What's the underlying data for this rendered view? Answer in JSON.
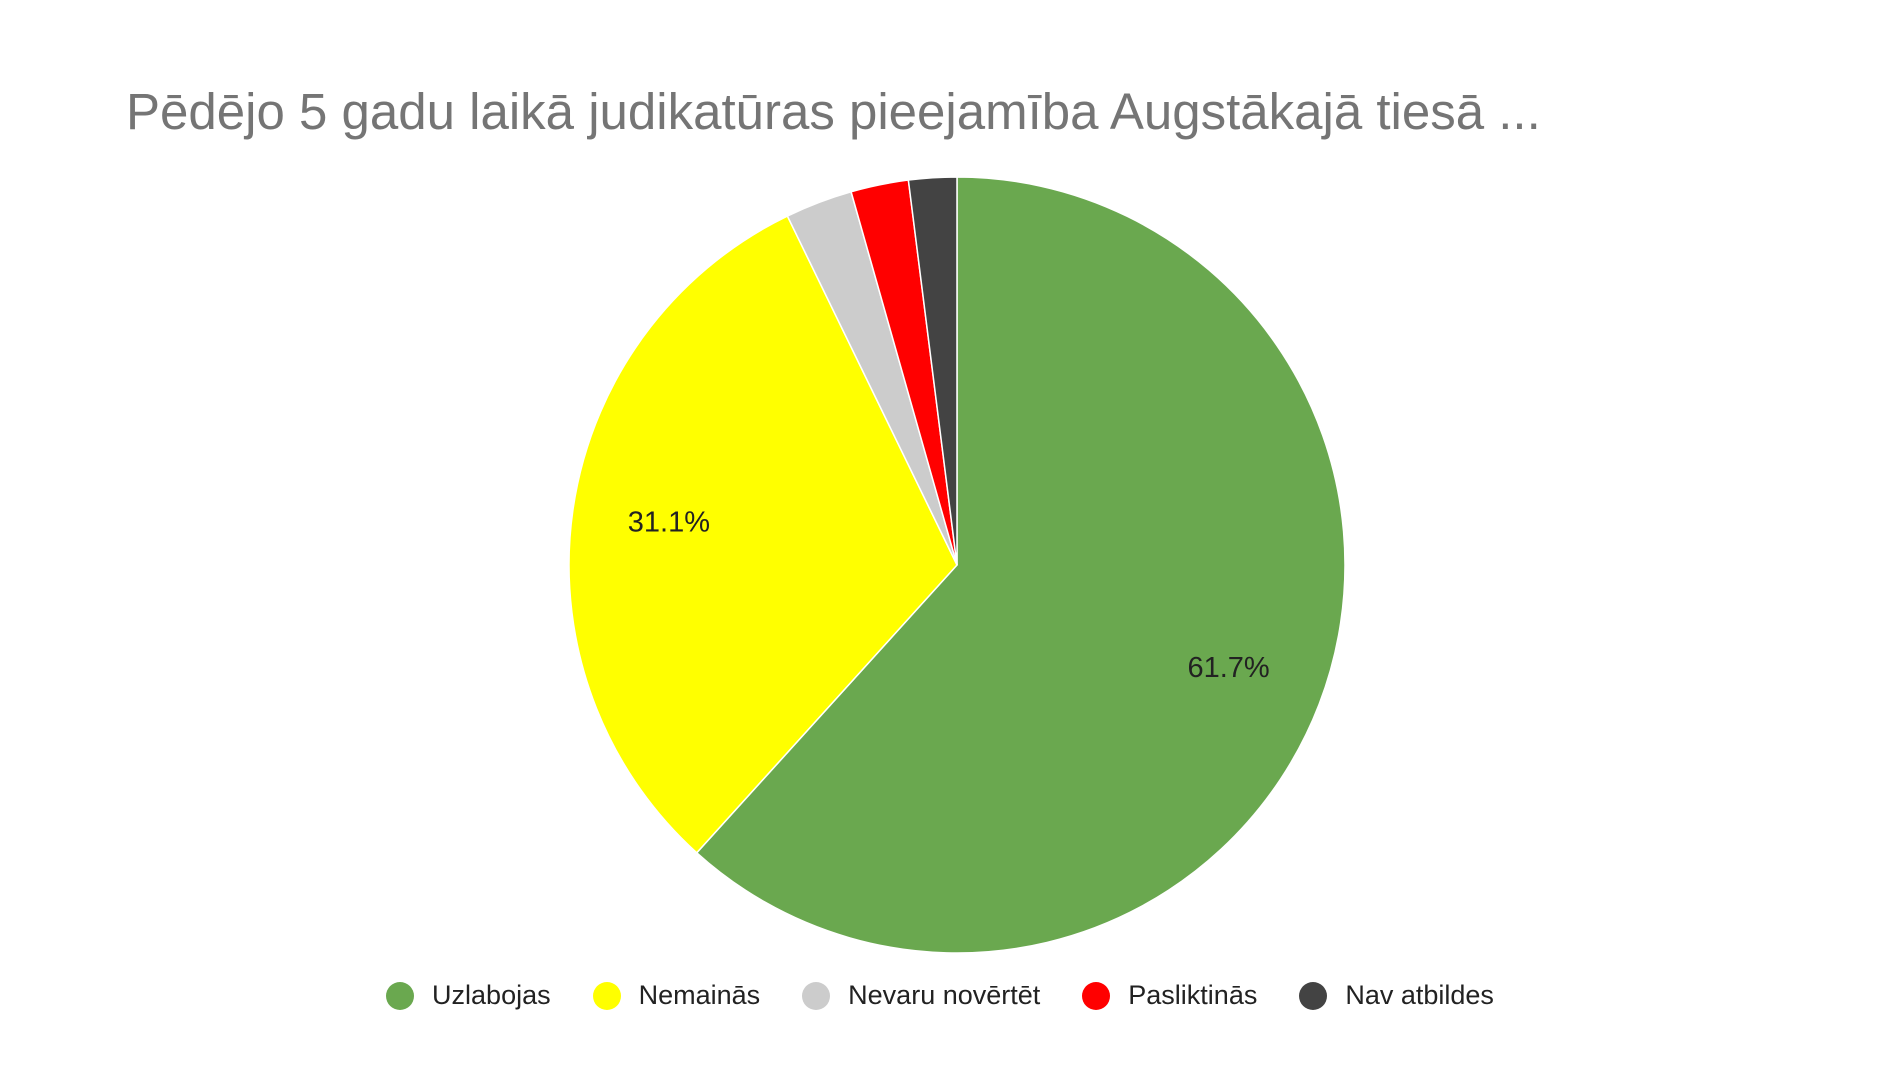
{
  "chart_data": {
    "type": "pie",
    "title": "Pēdējo 5 gadu laikā judikatūras pieejamība Augstākajā tiesā ...",
    "categories": [
      "Uzlabojas",
      "Nemainās",
      "Nevaru novērtēt",
      "Pasliktinās",
      "Nav atbildes"
    ],
    "values": [
      61.7,
      31.1,
      2.8,
      2.4,
      2.0
    ],
    "colors": [
      "#6aa84f",
      "#ffff00",
      "#cccccc",
      "#ff0000",
      "#434343"
    ],
    "data_labels": [
      "61.7%",
      "31.1%",
      "",
      "",
      ""
    ],
    "legend_position": "bottom"
  }
}
